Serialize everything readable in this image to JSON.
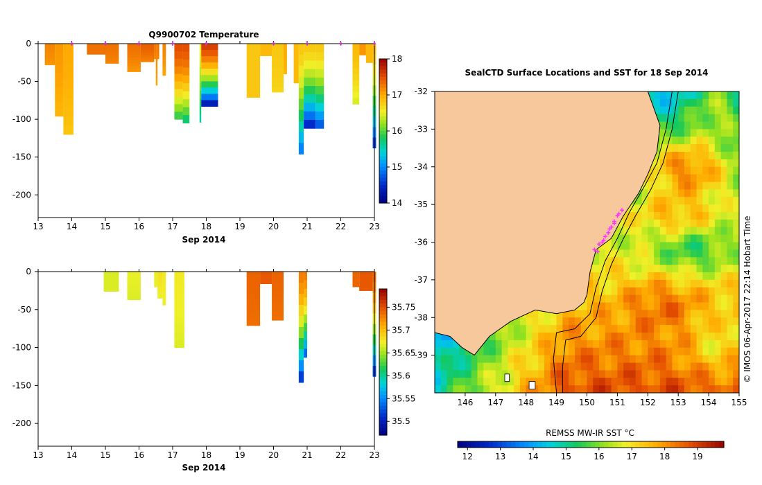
{
  "chart_data": [
    {
      "type": "heatmap",
      "name": "temperature_section",
      "title": "Q9900702  Temperature",
      "xlabel": "Sep 2014",
      "xticks": [
        "13",
        "14",
        "15",
        "16",
        "17",
        "18",
        "19",
        "20",
        "21",
        "22",
        "23"
      ],
      "xlim": [
        13,
        23
      ],
      "ylim": [
        -230,
        0
      ],
      "yticks": [
        "0",
        "-50",
        "-100",
        "-150",
        "-200"
      ],
      "colorbar": {
        "range": [
          14,
          18
        ],
        "ticks": [
          "18",
          "17",
          "16",
          "15",
          "14"
        ]
      },
      "profile_markers": [
        14,
        15,
        16,
        17,
        18,
        20,
        21,
        22,
        23
      ],
      "profiles": [
        {
          "x0": 13.2,
          "x1": 13.5,
          "depth": 28,
          "top": 17.2,
          "bottom": 17.1
        },
        {
          "x0": 13.5,
          "x1": 13.75,
          "depth": 96,
          "top": 17.1,
          "bottom": 16.9
        },
        {
          "x0": 13.75,
          "x1": 14.05,
          "depth": 120,
          "top": 17.0,
          "bottom": 16.8
        },
        {
          "x0": 14.45,
          "x1": 15.0,
          "depth": 14,
          "top": 17.3,
          "bottom": 17.3
        },
        {
          "x0": 15.0,
          "x1": 15.4,
          "depth": 26,
          "top": 17.3,
          "bottom": 17.2
        },
        {
          "x0": 15.65,
          "x1": 16.05,
          "depth": 37,
          "top": 17.3,
          "bottom": 17.1
        },
        {
          "x0": 16.05,
          "x1": 16.45,
          "depth": 24,
          "top": 17.4,
          "bottom": 17.2
        },
        {
          "x0": 16.45,
          "x1": 16.6,
          "depth": 20,
          "top": 17.3,
          "bottom": 17.2
        },
        {
          "x0": 16.5,
          "x1": 16.55,
          "depth": 55,
          "top": 17.2,
          "bottom": 17.0
        },
        {
          "x0": 16.7,
          "x1": 16.8,
          "depth": 42,
          "top": 17.2,
          "bottom": 17.0
        },
        {
          "x0": 17.05,
          "x1": 17.3,
          "depth": 100,
          "top": 17.5,
          "bottom": 15.8
        },
        {
          "x0": 17.3,
          "x1": 17.5,
          "depth": 105,
          "top": 17.5,
          "bottom": 15.6
        },
        {
          "x0": 17.8,
          "x1": 17.85,
          "depth": 104,
          "top": 16.5,
          "bottom": 15.5
        },
        {
          "x0": 17.85,
          "x1": 18.35,
          "depth": 83,
          "top": 17.6,
          "bottom": 14.1
        },
        {
          "x0": 19.2,
          "x1": 19.6,
          "depth": 71,
          "top": 16.8,
          "bottom": 16.8
        },
        {
          "x0": 19.6,
          "x1": 19.95,
          "depth": 16,
          "top": 16.9,
          "bottom": 16.9
        },
        {
          "x0": 19.95,
          "x1": 20.3,
          "depth": 64,
          "top": 16.8,
          "bottom": 16.7
        },
        {
          "x0": 20.3,
          "x1": 20.4,
          "depth": 40,
          "top": 17.0,
          "bottom": 16.9
        },
        {
          "x0": 20.6,
          "x1": 20.75,
          "depth": 52,
          "top": 16.9,
          "bottom": 16.9
        },
        {
          "x0": 20.75,
          "x1": 20.9,
          "depth": 146,
          "top": 16.8,
          "bottom": 14.8
        },
        {
          "x0": 20.9,
          "x1": 21.25,
          "depth": 112,
          "top": 16.8,
          "bottom": 14.3
        },
        {
          "x0": 21.25,
          "x1": 21.5,
          "depth": 112,
          "top": 16.8,
          "bottom": 14.6
        },
        {
          "x0": 22.35,
          "x1": 22.55,
          "depth": 80,
          "top": 16.9,
          "bottom": 16.4
        },
        {
          "x0": 22.55,
          "x1": 22.75,
          "depth": 15,
          "top": 17.1,
          "bottom": 17.1
        },
        {
          "x0": 22.75,
          "x1": 22.95,
          "depth": 25,
          "top": 16.9,
          "bottom": 16.9
        },
        {
          "x0": 22.95,
          "x1": 23.05,
          "depth": 138,
          "top": 16.9,
          "bottom": 14.4
        }
      ]
    },
    {
      "type": "heatmap",
      "name": "salinity_section",
      "title": "",
      "xlabel": "Sep 2014",
      "xticks": [
        "13",
        "14",
        "15",
        "16",
        "17",
        "18",
        "19",
        "20",
        "21",
        "22",
        "23"
      ],
      "xlim": [
        13,
        23
      ],
      "ylim": [
        -230,
        0
      ],
      "yticks": [
        "0",
        "-50",
        "-100",
        "-150",
        "-200"
      ],
      "colorbar": {
        "range": [
          35.47,
          35.79
        ],
        "ticks": [
          "35.75",
          "35.7",
          "35.65",
          "35.6",
          "35.55",
          "35.5"
        ]
      },
      "profiles": [
        {
          "x0": 14.95,
          "x1": 15.4,
          "depth": 26,
          "top": 35.665,
          "bottom": 35.665
        },
        {
          "x0": 15.65,
          "x1": 16.05,
          "depth": 37,
          "top": 35.67,
          "bottom": 35.665
        },
        {
          "x0": 16.45,
          "x1": 16.55,
          "depth": 20,
          "top": 35.67,
          "bottom": 35.67
        },
        {
          "x0": 16.55,
          "x1": 16.7,
          "depth": 35,
          "top": 35.68,
          "bottom": 35.67
        },
        {
          "x0": 16.7,
          "x1": 16.8,
          "depth": 44,
          "top": 35.675,
          "bottom": 35.67
        },
        {
          "x0": 17.05,
          "x1": 17.35,
          "depth": 100,
          "top": 35.675,
          "bottom": 35.665
        },
        {
          "x0": 19.2,
          "x1": 19.6,
          "depth": 71,
          "top": 35.74,
          "bottom": 35.735
        },
        {
          "x0": 19.6,
          "x1": 19.95,
          "depth": 16,
          "top": 35.745,
          "bottom": 35.745
        },
        {
          "x0": 19.95,
          "x1": 20.3,
          "depth": 64,
          "top": 35.74,
          "bottom": 35.735
        },
        {
          "x0": 20.75,
          "x1": 20.9,
          "depth": 146,
          "top": 35.73,
          "bottom": 35.5
        },
        {
          "x0": 20.9,
          "x1": 21.0,
          "depth": 113,
          "top": 35.73,
          "bottom": 35.52
        },
        {
          "x0": 22.35,
          "x1": 22.55,
          "depth": 20,
          "top": 35.74,
          "bottom": 35.74
        },
        {
          "x0": 22.55,
          "x1": 22.95,
          "depth": 25,
          "top": 35.745,
          "bottom": 35.745
        },
        {
          "x0": 22.95,
          "x1": 23.05,
          "depth": 138,
          "top": 35.74,
          "bottom": 35.5
        }
      ]
    },
    {
      "type": "heatmap",
      "name": "sst_map",
      "title": "SealCTD Surface Locations and SST for 18 Sep 2014",
      "xlabel": "",
      "xticks": [
        "146",
        "147",
        "148",
        "149",
        "150",
        "151",
        "152",
        "153",
        "154",
        "155"
      ],
      "yticks": [
        "-32",
        "-33",
        "-34",
        "-35",
        "-36",
        "-37",
        "-38",
        "-39"
      ],
      "xlim": [
        145.0,
        155.0
      ],
      "ylim": [
        -40.0,
        -32.0
      ],
      "colorbar": {
        "label": "REMSS MW-IR SST °C",
        "range": [
          11.7,
          19.8
        ],
        "ticks": [
          "12",
          "13",
          "14",
          "15",
          "16",
          "17",
          "18",
          "19"
        ]
      },
      "credit": "©  IMOS 06-Apr-2017 22:14 Hobart Time",
      "coastline": [
        [
          148.6,
          -32.0
        ],
        [
          152.0,
          -32.0
        ],
        [
          152.4,
          -32.9
        ],
        [
          152.3,
          -33.6
        ],
        [
          152.0,
          -34.2
        ],
        [
          151.7,
          -34.7
        ],
        [
          151.2,
          -35.3
        ],
        [
          150.8,
          -35.9
        ],
        [
          150.3,
          -36.2
        ],
        [
          150.1,
          -36.8
        ],
        [
          150.0,
          -37.4
        ],
        [
          149.9,
          -37.6
        ],
        [
          149.6,
          -37.8
        ],
        [
          149.0,
          -37.9
        ],
        [
          148.3,
          -37.8
        ],
        [
          147.5,
          -38.1
        ],
        [
          146.8,
          -38.5
        ],
        [
          146.3,
          -39.0
        ],
        [
          145.9,
          -38.8
        ],
        [
          145.5,
          -38.5
        ],
        [
          145.0,
          -38.4
        ],
        [
          145.0,
          -32.0
        ]
      ],
      "islands": [
        [
          [
            148.1,
            -39.7
          ],
          [
            148.3,
            -39.7
          ],
          [
            148.3,
            -39.9
          ],
          [
            148.1,
            -39.9
          ]
        ],
        [
          [
            147.3,
            -39.5
          ],
          [
            147.45,
            -39.5
          ],
          [
            147.45,
            -39.7
          ],
          [
            147.3,
            -39.7
          ]
        ]
      ],
      "shelf_lines": [
        [
          [
            152.8,
            -32.0
          ],
          [
            152.6,
            -33.0
          ],
          [
            152.3,
            -33.9
          ],
          [
            151.9,
            -34.5
          ],
          [
            151.4,
            -35.2
          ],
          [
            151.0,
            -35.9
          ],
          [
            150.6,
            -36.5
          ],
          [
            150.3,
            -37.2
          ],
          [
            150.1,
            -37.9
          ],
          [
            149.6,
            -38.3
          ],
          [
            149.0,
            -38.4
          ],
          [
            148.9,
            -39.1
          ],
          [
            149.0,
            -40.0
          ]
        ],
        [
          [
            153.0,
            -32.0
          ],
          [
            152.8,
            -33.0
          ],
          [
            152.5,
            -33.9
          ],
          [
            152.1,
            -34.6
          ],
          [
            151.6,
            -35.3
          ],
          [
            151.2,
            -35.9
          ],
          [
            150.8,
            -36.6
          ],
          [
            150.5,
            -37.3
          ],
          [
            150.3,
            -38.0
          ],
          [
            149.8,
            -38.5
          ],
          [
            149.3,
            -38.6
          ],
          [
            149.2,
            -39.3
          ],
          [
            149.2,
            -40.0
          ]
        ]
      ],
      "surface_locations": [
        [
          150.25,
          -36.2
        ],
        [
          150.4,
          -36.05
        ],
        [
          150.6,
          -35.85
        ],
        [
          150.75,
          -35.65
        ],
        [
          150.9,
          -35.45
        ],
        [
          151.0,
          -35.3
        ],
        [
          151.15,
          -35.15
        ],
        [
          150.5,
          -36.0
        ],
        [
          150.7,
          -35.75
        ],
        [
          150.9,
          -35.5
        ],
        [
          150.35,
          -36.25
        ],
        [
          150.55,
          -35.95
        ],
        [
          150.8,
          -35.6
        ],
        [
          151.05,
          -35.25
        ]
      ]
    }
  ]
}
